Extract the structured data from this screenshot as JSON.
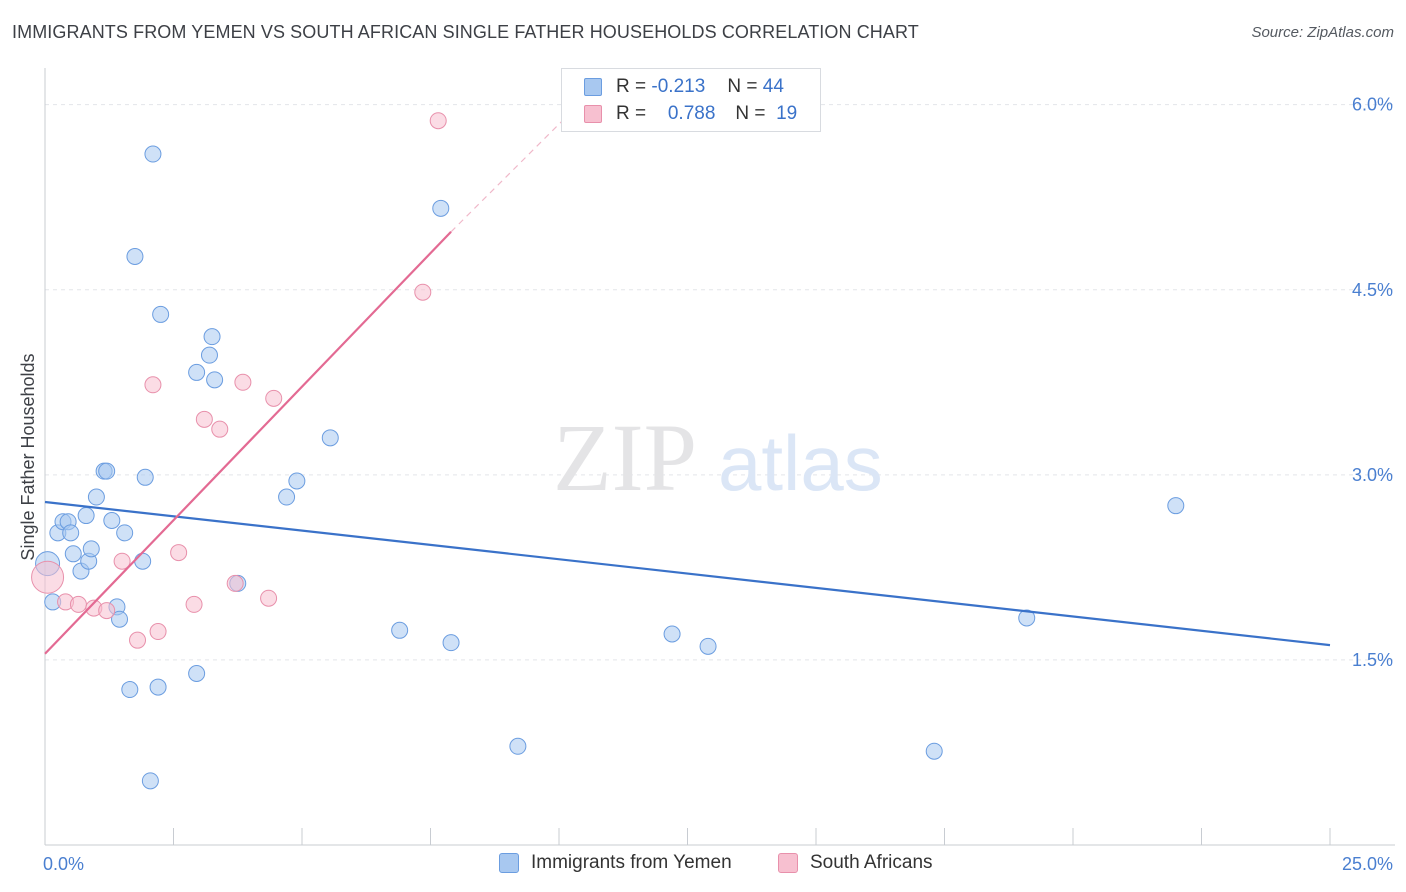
{
  "title": "IMMIGRANTS FROM YEMEN VS SOUTH AFRICAN SINGLE FATHER HOUSEHOLDS CORRELATION CHART",
  "source": "Source: ZipAtlas.com",
  "watermark": {
    "zip": "ZIP",
    "atlas": "atlas"
  },
  "legend": {
    "r_label": "R =",
    "n_label": "N =",
    "rows": [
      {
        "r": "-0.213",
        "n": "44",
        "color": "#a8c8f0",
        "border": "#6b9de0"
      },
      {
        "r": "0.788",
        "n": "19",
        "color": "#f7c0d0",
        "border": "#e890ab"
      }
    ]
  },
  "chart_data": {
    "type": "scatter",
    "xlabel": "",
    "ylabel": "Single Father Households",
    "xlim": [
      0,
      25
    ],
    "ylim": [
      0,
      6.2
    ],
    "x_tick_labels": [
      {
        "value": 0,
        "label": "0.0%"
      },
      {
        "value": 25,
        "label": "25.0%"
      }
    ],
    "y_tick_labels": [
      {
        "value": 1.5,
        "label": "1.5%"
      },
      {
        "value": 3.0,
        "label": "3.0%"
      },
      {
        "value": 4.5,
        "label": "4.5%"
      },
      {
        "value": 6.0,
        "label": "6.0%"
      }
    ],
    "grid": "horizontal dashed",
    "legend_position": "top-center and bottom",
    "series": [
      {
        "name": "Immigrants from Yemen",
        "color": "#a8c8f0",
        "stroke": "#6b9de0",
        "trend": {
          "x": [
            0,
            25
          ],
          "y": [
            2.78,
            1.62
          ],
          "color": "#3a72c9"
        },
        "points": [
          [
            0.05,
            2.28
          ],
          [
            0.15,
            1.97
          ],
          [
            0.25,
            2.53
          ],
          [
            0.35,
            2.62
          ],
          [
            0.45,
            2.62
          ],
          [
            0.5,
            2.53
          ],
          [
            0.55,
            2.36
          ],
          [
            0.7,
            2.22
          ],
          [
            0.8,
            2.67
          ],
          [
            0.85,
            2.3
          ],
          [
            0.9,
            2.4
          ],
          [
            1.0,
            2.82
          ],
          [
            1.15,
            3.03
          ],
          [
            1.2,
            3.03
          ],
          [
            1.3,
            2.63
          ],
          [
            1.4,
            1.93
          ],
          [
            1.45,
            1.83
          ],
          [
            1.55,
            2.53
          ],
          [
            1.65,
            1.26
          ],
          [
            1.75,
            4.77
          ],
          [
            1.9,
            2.3
          ],
          [
            1.95,
            2.98
          ],
          [
            2.05,
            0.52
          ],
          [
            2.1,
            5.6
          ],
          [
            2.2,
            1.28
          ],
          [
            2.25,
            4.3
          ],
          [
            2.95,
            1.39
          ],
          [
            2.95,
            3.83
          ],
          [
            3.2,
            3.97
          ],
          [
            3.25,
            4.12
          ],
          [
            3.3,
            3.77
          ],
          [
            3.75,
            2.12
          ],
          [
            4.7,
            2.82
          ],
          [
            4.9,
            2.95
          ],
          [
            5.55,
            3.3
          ],
          [
            6.9,
            1.74
          ],
          [
            7.7,
            5.16
          ],
          [
            7.9,
            1.64
          ],
          [
            9.2,
            0.8
          ],
          [
            12.2,
            1.71
          ],
          [
            12.9,
            1.61
          ],
          [
            17.3,
            0.76
          ],
          [
            19.1,
            1.84
          ],
          [
            22.0,
            2.75
          ]
        ]
      },
      {
        "name": "South Africans",
        "color": "#f7c0d0",
        "stroke": "#e890ab",
        "trend": {
          "x": [
            0,
            7.9
          ],
          "y": [
            1.55,
            4.97
          ],
          "color": "#e36a93",
          "dash_to": {
            "x": 10.5,
            "y": 6.05
          }
        },
        "points": [
          [
            0.05,
            2.17
          ],
          [
            0.4,
            1.97
          ],
          [
            0.65,
            1.95
          ],
          [
            0.95,
            1.92
          ],
          [
            1.2,
            1.9
          ],
          [
            1.5,
            2.3
          ],
          [
            1.8,
            1.66
          ],
          [
            2.1,
            3.73
          ],
          [
            2.2,
            1.73
          ],
          [
            2.6,
            2.37
          ],
          [
            2.9,
            1.95
          ],
          [
            3.1,
            3.45
          ],
          [
            3.4,
            3.37
          ],
          [
            3.7,
            2.12
          ],
          [
            3.85,
            3.75
          ],
          [
            4.35,
            2.0
          ],
          [
            4.45,
            3.62
          ],
          [
            7.35,
            4.48
          ],
          [
            7.65,
            5.87
          ]
        ]
      }
    ]
  }
}
